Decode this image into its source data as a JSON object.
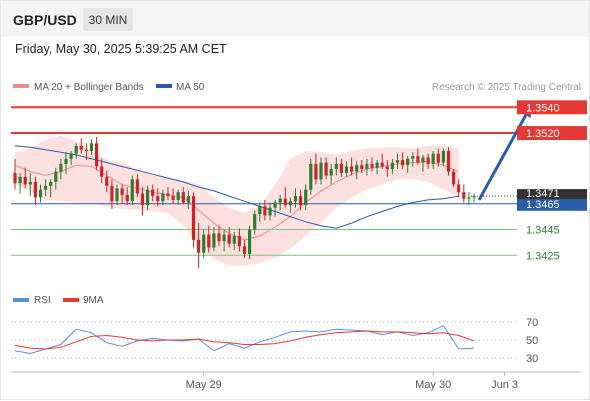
{
  "header": {
    "pair": "GBP/USD",
    "timeframe": "30 MIN",
    "datetime": "Friday, May 30, 2025 5:39:25 AM CET"
  },
  "legend": {
    "bollinger": "MA 20 + Bollinger Bands",
    "ma50": "MA 50",
    "credit": "Research © 2025 Trading Central"
  },
  "rsi_legend": {
    "rsi": "RSI",
    "ma": "9MA"
  },
  "colors": {
    "candle_up": "#2e7d32",
    "candle_down": "#c62828",
    "resistance": "#e53935",
    "support": "#7cc47c",
    "ma50": "#2a5caa",
    "ma20": "#f08a8a",
    "bollinger_fill": "#fde1e1",
    "arrow": "#2a5caa",
    "rsi": "#5b8dd9",
    "rsi_ma": "#e53935"
  },
  "icons": {
    "forecast_arrow": "arrow-up-right-icon"
  },
  "chart_data": {
    "type": "candlestick",
    "instrument": "GBP/USD",
    "interval": "30 MIN",
    "ylim": [
      1.3405,
      1.3548
    ],
    "x_labels": [
      "May 29",
      "May 30",
      "Jun 3"
    ],
    "x_label_index": [
      37,
      82,
      96
    ],
    "levels": [
      {
        "value": 1.354,
        "label": "1.3540",
        "kind": "resistance"
      },
      {
        "value": 1.352,
        "label": "1.3520",
        "kind": "resistance"
      },
      {
        "value": 1.3465,
        "label": "1.3465",
        "kind": "pivot"
      },
      {
        "value": 1.3445,
        "label": "1.3445",
        "kind": "support"
      },
      {
        "value": 1.3425,
        "label": "1.3425",
        "kind": "support"
      }
    ],
    "current_price": {
      "value": 1.3471,
      "label": "1.3471"
    },
    "forecast": {
      "from": [
        91,
        1.3468
      ],
      "to": [
        101,
        1.354
      ]
    },
    "candles": [
      [
        1.3489,
        1.35,
        1.3476,
        1.3481
      ],
      [
        1.3481,
        1.3489,
        1.3473,
        1.3486
      ],
      [
        1.3486,
        1.3493,
        1.3477,
        1.348
      ],
      [
        1.348,
        1.3489,
        1.3471,
        1.3482
      ],
      [
        1.3482,
        1.3486,
        1.3464,
        1.347
      ],
      [
        1.347,
        1.348,
        1.3466,
        1.3476
      ],
      [
        1.3476,
        1.3484,
        1.3471,
        1.3479
      ],
      [
        1.3479,
        1.3484,
        1.347,
        1.3482
      ],
      [
        1.3482,
        1.3493,
        1.3476,
        1.349
      ],
      [
        1.349,
        1.35,
        1.3484,
        1.3496
      ],
      [
        1.3496,
        1.3505,
        1.3488,
        1.35
      ],
      [
        1.35,
        1.3506,
        1.3495,
        1.3504
      ],
      [
        1.3504,
        1.3512,
        1.35,
        1.351
      ],
      [
        1.351,
        1.3516,
        1.3504,
        1.3507
      ],
      [
        1.3507,
        1.3512,
        1.3499,
        1.3506
      ],
      [
        1.3506,
        1.3515,
        1.3503,
        1.3512
      ],
      [
        1.3512,
        1.3517,
        1.3491,
        1.3494
      ],
      [
        1.3494,
        1.35,
        1.3481,
        1.3486
      ],
      [
        1.3486,
        1.3491,
        1.3474,
        1.3479
      ],
      [
        1.3479,
        1.3484,
        1.3461,
        1.3467
      ],
      [
        1.3467,
        1.348,
        1.3464,
        1.3477
      ],
      [
        1.3477,
        1.348,
        1.3465,
        1.3472
      ],
      [
        1.3472,
        1.3478,
        1.3464,
        1.3467
      ],
      [
        1.3467,
        1.3487,
        1.3464,
        1.3484
      ],
      [
        1.3484,
        1.3488,
        1.347,
        1.3473
      ],
      [
        1.3473,
        1.3478,
        1.3456,
        1.3464
      ],
      [
        1.3464,
        1.3479,
        1.346,
        1.3476
      ],
      [
        1.3476,
        1.348,
        1.3467,
        1.3471
      ],
      [
        1.3471,
        1.3477,
        1.3463,
        1.3467
      ],
      [
        1.3467,
        1.3476,
        1.3464,
        1.3473
      ],
      [
        1.3473,
        1.3478,
        1.3468,
        1.3471
      ],
      [
        1.3471,
        1.3477,
        1.3465,
        1.3468
      ],
      [
        1.3468,
        1.3476,
        1.3464,
        1.3474
      ],
      [
        1.3474,
        1.3478,
        1.3465,
        1.3466
      ],
      [
        1.3466,
        1.3475,
        1.3461,
        1.3471
      ],
      [
        1.3471,
        1.3474,
        1.3431,
        1.3437
      ],
      [
        1.3437,
        1.345,
        1.3415,
        1.3427
      ],
      [
        1.3427,
        1.3445,
        1.3423,
        1.3441
      ],
      [
        1.3441,
        1.3448,
        1.3427,
        1.3431
      ],
      [
        1.3431,
        1.3447,
        1.3428,
        1.3442
      ],
      [
        1.3442,
        1.3448,
        1.3432,
        1.3436
      ],
      [
        1.3436,
        1.3445,
        1.3428,
        1.3441
      ],
      [
        1.3441,
        1.3447,
        1.3431,
        1.3434
      ],
      [
        1.3434,
        1.3443,
        1.3429,
        1.344
      ],
      [
        1.344,
        1.3446,
        1.3428,
        1.3432
      ],
      [
        1.3432,
        1.3437,
        1.3423,
        1.3426
      ],
      [
        1.3426,
        1.3448,
        1.3422,
        1.3445
      ],
      [
        1.3445,
        1.346,
        1.3441,
        1.3457
      ],
      [
        1.3457,
        1.3466,
        1.3451,
        1.3463
      ],
      [
        1.3463,
        1.3468,
        1.3452,
        1.3456
      ],
      [
        1.3456,
        1.3466,
        1.3452,
        1.3462
      ],
      [
        1.3462,
        1.3468,
        1.3455,
        1.3466
      ],
      [
        1.3466,
        1.3472,
        1.346,
        1.3469
      ],
      [
        1.3469,
        1.3478,
        1.3462,
        1.3464
      ],
      [
        1.3464,
        1.347,
        1.3458,
        1.3467
      ],
      [
        1.3467,
        1.3477,
        1.3462,
        1.3471
      ],
      [
        1.3471,
        1.3476,
        1.346,
        1.3464
      ],
      [
        1.3464,
        1.348,
        1.346,
        1.3476
      ],
      [
        1.3476,
        1.35,
        1.3472,
        1.3496
      ],
      [
        1.3496,
        1.3504,
        1.348,
        1.3484
      ],
      [
        1.3484,
        1.3501,
        1.348,
        1.3497
      ],
      [
        1.3497,
        1.3501,
        1.3484,
        1.3487
      ],
      [
        1.3487,
        1.3496,
        1.348,
        1.3492
      ],
      [
        1.3492,
        1.3501,
        1.3487,
        1.3496
      ],
      [
        1.3496,
        1.35,
        1.3486,
        1.3489
      ],
      [
        1.3489,
        1.3498,
        1.3486,
        1.3494
      ],
      [
        1.3494,
        1.3501,
        1.3487,
        1.349
      ],
      [
        1.349,
        1.3498,
        1.3484,
        1.3495
      ],
      [
        1.3495,
        1.3499,
        1.3489,
        1.3492
      ],
      [
        1.3492,
        1.35,
        1.3487,
        1.3496
      ],
      [
        1.3496,
        1.3501,
        1.349,
        1.3493
      ],
      [
        1.3493,
        1.3499,
        1.3488,
        1.3497
      ],
      [
        1.3497,
        1.3504,
        1.3492,
        1.3494
      ],
      [
        1.3494,
        1.3499,
        1.3486,
        1.3492
      ],
      [
        1.3492,
        1.35,
        1.3488,
        1.3497
      ],
      [
        1.3497,
        1.3504,
        1.3492,
        1.3499
      ],
      [
        1.3499,
        1.3505,
        1.3492,
        1.3495
      ],
      [
        1.3495,
        1.3502,
        1.3489,
        1.35
      ],
      [
        1.35,
        1.3505,
        1.3494,
        1.3502
      ],
      [
        1.3502,
        1.3508,
        1.3495,
        1.3497
      ],
      [
        1.3497,
        1.3503,
        1.349,
        1.3501
      ],
      [
        1.3501,
        1.3504,
        1.3492,
        1.3496
      ],
      [
        1.3496,
        1.3506,
        1.3492,
        1.3504
      ],
      [
        1.3504,
        1.3508,
        1.3494,
        1.3497
      ],
      [
        1.3497,
        1.3508,
        1.3494,
        1.3506
      ],
      [
        1.3506,
        1.3509,
        1.3487,
        1.349
      ],
      [
        1.349,
        1.3492,
        1.3478,
        1.348
      ],
      [
        1.348,
        1.3484,
        1.347,
        1.3474
      ],
      [
        1.3474,
        1.348,
        1.3466,
        1.3469
      ],
      [
        1.3469,
        1.3474,
        1.3464,
        1.347
      ],
      [
        1.347,
        1.3473,
        1.3466,
        1.3471
      ]
    ],
    "ma50": [
      1.351,
      1.3509,
      1.3507,
      1.3505,
      1.3503,
      1.35,
      1.3497,
      1.3494,
      1.3491,
      1.3488,
      1.3485,
      1.3482,
      1.3478,
      1.3475,
      1.3471,
      1.3467,
      1.3463,
      1.3459,
      1.3455,
      1.3451,
      1.3448,
      1.3446,
      1.345,
      1.3455,
      1.3459,
      1.3463,
      1.3466,
      1.3468,
      1.3469,
      1.3471
    ],
    "ma20": [
      1.3495,
      1.349,
      1.3487,
      1.349,
      1.3495,
      1.3494,
      1.3487,
      1.348,
      1.3477,
      1.3474,
      1.3472,
      1.347,
      1.346,
      1.345,
      1.3442,
      1.3437,
      1.344,
      1.3447,
      1.3455,
      1.3466,
      1.3475,
      1.3482,
      1.3488,
      1.3492,
      1.3494,
      1.3496,
      1.3497,
      1.3498,
      1.3495,
      1.349
    ],
    "bb_upper": [
      1.3505,
      1.3508,
      1.3515,
      1.3518,
      1.3514,
      1.3506,
      1.3499,
      1.3497,
      1.3492,
      1.3487,
      1.3485,
      1.3483,
      1.348,
      1.347,
      1.3462,
      1.3458,
      1.3463,
      1.348,
      1.35,
      1.3506,
      1.3505,
      1.3503,
      1.3506,
      1.3508,
      1.3509,
      1.3509,
      1.3508,
      1.351,
      1.351,
      1.3508
    ],
    "bb_lower": [
      1.348,
      1.3475,
      1.3468,
      1.3467,
      1.3466,
      1.3465,
      1.3463,
      1.3461,
      1.346,
      1.3459,
      1.3458,
      1.3448,
      1.3432,
      1.3422,
      1.3417,
      1.3417,
      1.3419,
      1.3423,
      1.343,
      1.344,
      1.345,
      1.3462,
      1.347,
      1.3476,
      1.348,
      1.3484,
      1.3484,
      1.3482,
      1.3476,
      1.347
    ],
    "line_x_index": [
      0,
      3,
      6,
      9,
      12,
      15,
      18,
      21,
      24,
      27,
      30,
      33,
      36,
      39,
      42,
      45,
      48,
      51,
      54,
      57,
      60,
      63,
      66,
      69,
      72,
      75,
      78,
      81,
      84,
      87
    ],
    "rsi": {
      "ticks": [
        70,
        50,
        30
      ],
      "ylim": [
        20,
        80
      ],
      "x_index": [
        0,
        3,
        6,
        9,
        12,
        15,
        18,
        21,
        24,
        27,
        30,
        33,
        36,
        39,
        42,
        45,
        48,
        51,
        54,
        57,
        60,
        63,
        66,
        69,
        72,
        75,
        78,
        81,
        84,
        87,
        90
      ],
      "rsi": [
        38,
        35,
        40,
        45,
        62,
        58,
        47,
        43,
        49,
        52,
        50,
        49,
        51,
        38,
        46,
        41,
        48,
        53,
        59,
        60,
        59,
        62,
        61,
        60,
        56,
        59,
        55,
        58,
        66,
        40,
        41
      ],
      "ma9": [
        44,
        41,
        40,
        42,
        48,
        54,
        55,
        53,
        50,
        49,
        50,
        50,
        51,
        48,
        47,
        45,
        45,
        46,
        49,
        53,
        56,
        58,
        59,
        60,
        59,
        59,
        58,
        57,
        58,
        55,
        49
      ]
    }
  }
}
